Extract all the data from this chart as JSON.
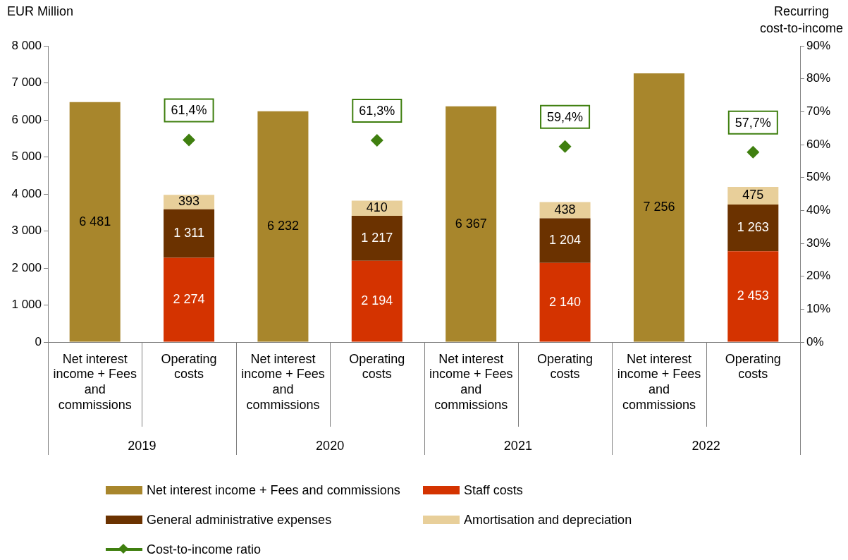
{
  "chart_data": {
    "type": "bar",
    "stacked": true,
    "ylabel": "EUR Million",
    "y2label": "Recurring cost-to-income",
    "categories": [
      "Net interest income + Fees and commissions",
      "Operating costs",
      "Net interest income + Fees and commissions",
      "Operating costs",
      "Net interest income + Fees and commissions",
      "Operating costs",
      "Net interest income + Fees and commissions",
      "Operating costs"
    ],
    "annotations": [
      "2019",
      "2020",
      "2021",
      "2022"
    ],
    "ylim": [
      0,
      8000
    ],
    "yticks": [
      0,
      {
        "value": 1000,
        "label": "1 000"
      },
      {
        "value": 2000,
        "label": "2 000"
      },
      {
        "value": 3000,
        "label": "3 000"
      },
      {
        "value": 4000,
        "label": "4 000"
      },
      {
        "value": 5000,
        "label": "5 000"
      },
      {
        "value": 6000,
        "label": "6 000"
      },
      {
        "value": 7000,
        "label": "7 000"
      },
      {
        "value": 8000,
        "label": "8 000"
      }
    ],
    "y2lim": [
      0,
      90
    ],
    "y2ticks": [
      {
        "value": 0,
        "label": "0%"
      },
      {
        "value": 10,
        "label": "10%"
      },
      {
        "value": 20,
        "label": "20%"
      },
      {
        "value": 30,
        "label": "30%"
      },
      {
        "value": 40,
        "label": "40%"
      },
      {
        "value": 50,
        "label": "50%"
      },
      {
        "value": 60,
        "label": "60%"
      },
      {
        "value": 70,
        "label": "70%"
      },
      {
        "value": 80,
        "label": "80%"
      },
      {
        "value": 90,
        "label": "90%"
      }
    ],
    "legend": "bottom",
    "series": [
      {
        "name": "Net interest income + Fees and commissions",
        "color": "#a8862c",
        "values": [
          6481,
          null,
          6232,
          null,
          6367,
          null,
          7256,
          null
        ],
        "value_labels": [
          "6 481",
          null,
          "6 232",
          null,
          "6 367",
          null,
          "7 256",
          null
        ]
      },
      {
        "name": "Staff costs",
        "color": "#d43300",
        "values": [
          null,
          2274,
          null,
          2194,
          null,
          2140,
          null,
          2453
        ],
        "value_labels": [
          null,
          "2 274",
          null,
          "2 194",
          null,
          "2 140",
          null,
          "2 453"
        ]
      },
      {
        "name": "General administrative expenses",
        "color": "#6b3200",
        "values": [
          null,
          1311,
          null,
          1217,
          null,
          1204,
          null,
          1263
        ],
        "value_labels": [
          null,
          "1 311",
          null,
          "1 217",
          null,
          "1 204",
          null,
          "1 263"
        ]
      },
      {
        "name": "Amortisation and depreciation",
        "color": "#e8cf9a",
        "values": [
          null,
          393,
          null,
          410,
          null,
          438,
          null,
          475
        ],
        "value_labels": [
          null,
          "393",
          null,
          "410",
          null,
          "438",
          null,
          "475"
        ]
      },
      {
        "name": "Cost-to-income ratio",
        "type": "scatter",
        "axis": "y2",
        "marker": "diamond",
        "color": "#3f7f0f",
        "values": [
          null,
          61.4,
          null,
          61.3,
          null,
          59.4,
          null,
          57.7
        ],
        "value_labels": [
          null,
          "61,4%",
          null,
          "61,3%",
          null,
          "59,4%",
          null,
          "57,7%"
        ]
      }
    ]
  }
}
